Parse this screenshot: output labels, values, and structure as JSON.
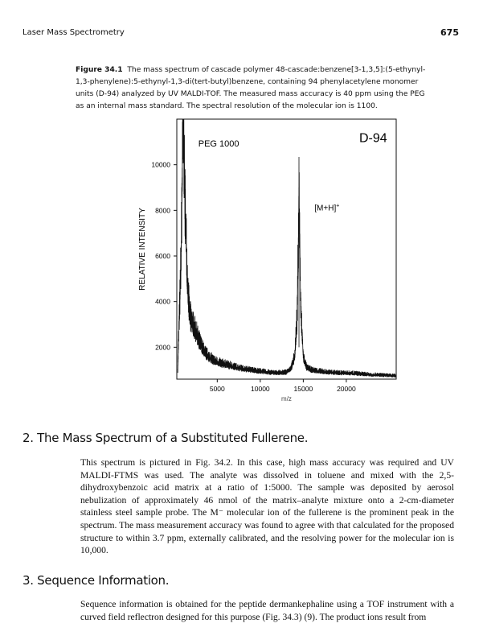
{
  "header": {
    "running_title": "Laser Mass Spectrometry",
    "page_number": "675"
  },
  "figure": {
    "label": "Figure 34.1",
    "caption": "The mass spectrum of cascade polymer 48-cascade:benzene[3-1,3,5]:(5-ethynyl-1,3-phenylene):5-ethynyl-1,3-di(tert-butyl)benzene, containing 94 phenylacetylene monomer units (D-94) analyzed by UV MALDI-TOF. The measured mass accuracy is 40 ppm using the PEG as an internal mass standard. The spectral resolution of the molecular ion is 1100."
  },
  "chart_data": {
    "type": "line",
    "title": "",
    "xlabel": "m/z",
    "ylabel": "RELATIVE INTENSITY",
    "xlim": [
      300,
      25800
    ],
    "ylim": [
      600,
      12000
    ],
    "xticks": [
      5000,
      10000,
      15000,
      20000
    ],
    "yticks": [
      2000,
      4000,
      6000,
      8000,
      10000
    ],
    "grid": false,
    "annotations": [
      {
        "text": "PEG 1000",
        "x": 2800,
        "y": 10800
      },
      {
        "text": "D-94",
        "x": 21500,
        "y": 11000
      },
      {
        "text": "[M+H]",
        "sup": "+",
        "x": 16300,
        "y": 8000
      }
    ],
    "series": [
      {
        "x": [
          400,
          600,
          800,
          900,
          1000,
          1100,
          1200,
          1400,
          1600,
          1800,
          2000,
          2300,
          2600,
          3000,
          3500,
          4000,
          4500,
          5000,
          6000,
          7000,
          8000,
          9000,
          10000,
          11000,
          12000,
          13000,
          13600,
          14000,
          14300,
          14500,
          14700,
          15000,
          15400,
          16000,
          17000,
          18000,
          19000,
          20000,
          21000,
          22000,
          23000,
          24000,
          25000,
          25800
        ],
        "y": [
          1000,
          3500,
          6000,
          9000,
          12000,
          11000,
          9000,
          6500,
          4500,
          3400,
          3200,
          2900,
          2600,
          2200,
          1800,
          1600,
          1450,
          1350,
          1250,
          1150,
          1050,
          1000,
          950,
          900,
          880,
          900,
          1100,
          1600,
          3500,
          9000,
          3800,
          1600,
          1100,
          1000,
          950,
          900,
          880,
          870,
          860,
          820,
          800,
          780,
          760,
          750
        ]
      }
    ]
  },
  "sections": [
    {
      "heading": "2. The Mass Spectrum of a Substituted Fullerene.",
      "text": "This spectrum is pictured in Fig. 34.2. In this case, high mass accuracy was required and UV MALDI-FTMS was used. The analyte was dissolved in toluene and mixed with the 2,5-dihydroxybenzoic acid matrix at a ratio of 1:5000. The sample was deposited by aerosol nebulization of approximately 46 nmol of the matrix–analyte mixture onto a 2-cm-diameter stainless steel sample probe. The M⁻ molecular ion of the fullerene is the prominent peak in the spectrum. The mass measurement accuracy was found to agree with that calculated for the proposed structure to within 3.7 ppm, externally calibrated, and the resolving power for the molecular ion is 10,000."
    },
    {
      "heading": "3. Sequence Information.",
      "text": "Sequence information is obtained for the peptide dermankephaline using a TOF instrument with a curved field reflectron designed for this purpose (Fig. 34.3) (9). The product ions result from"
    }
  ]
}
